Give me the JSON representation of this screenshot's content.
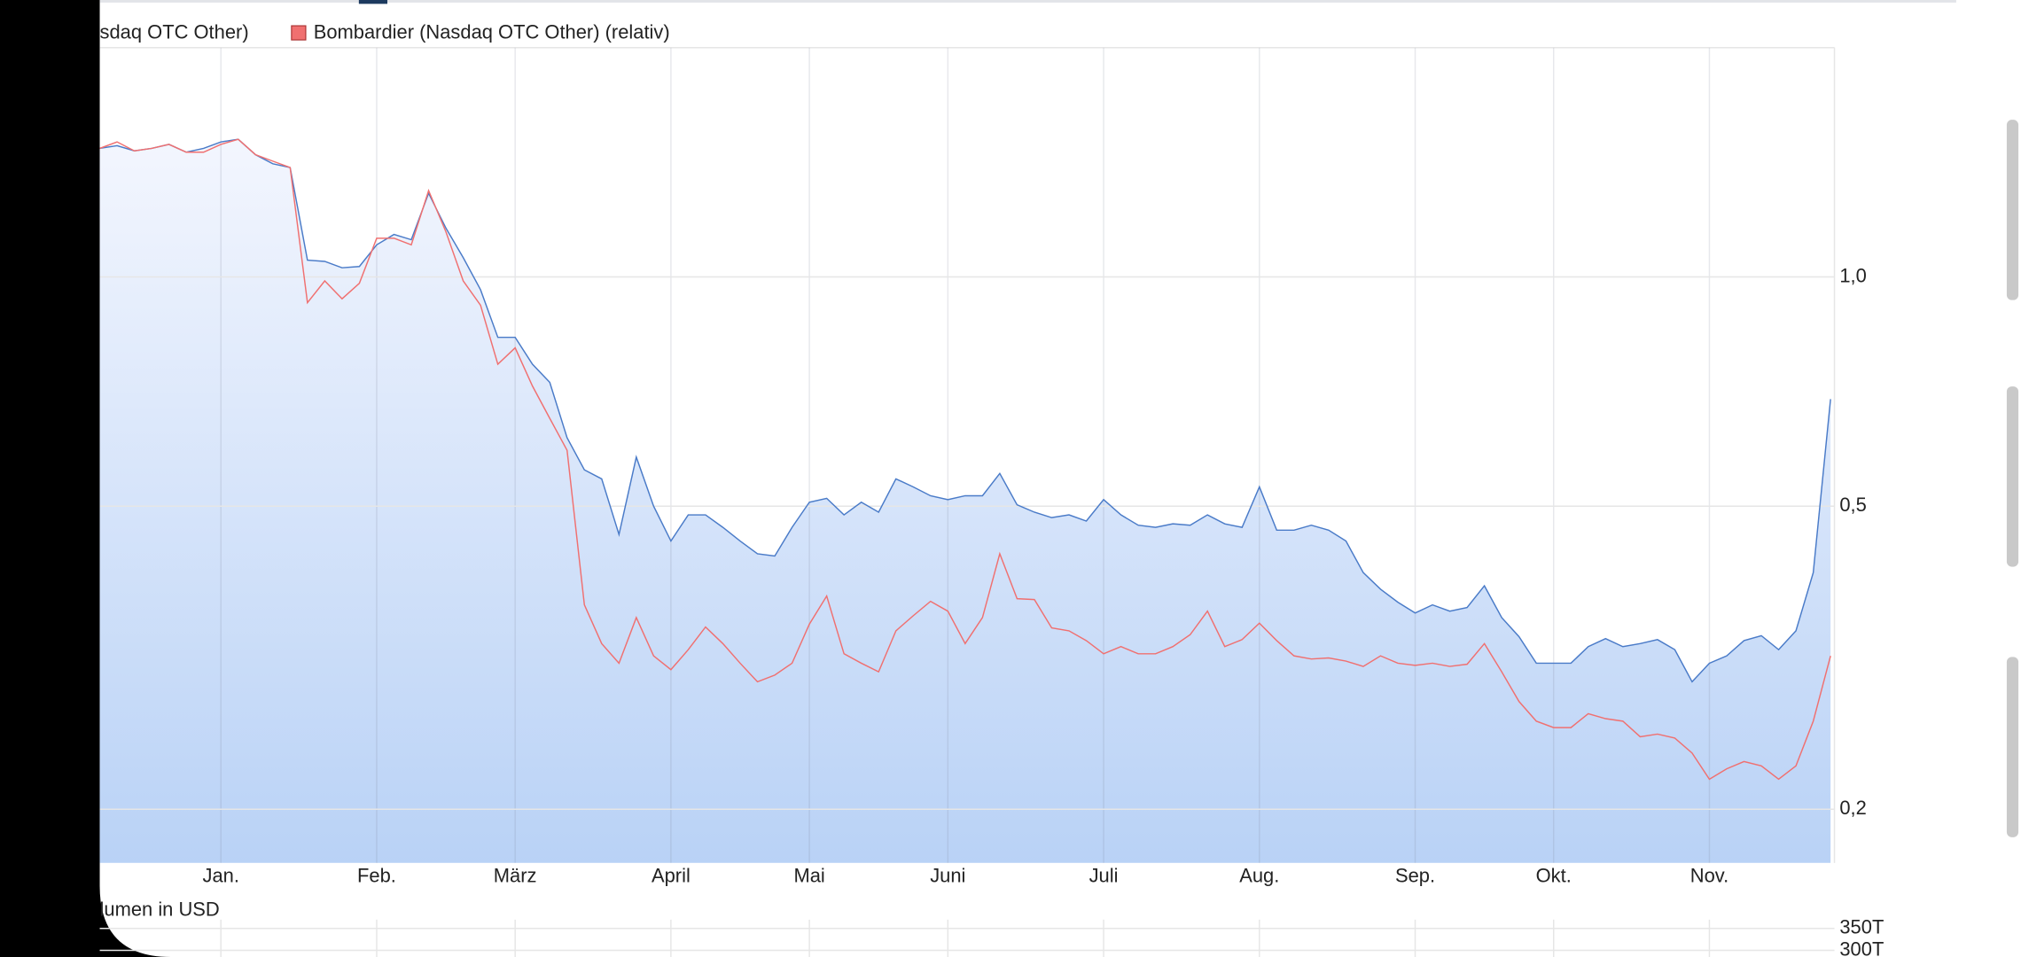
{
  "chart_data": [
    {
      "type": "line",
      "categories": [
        null,
        null,
        null,
        null,
        null,
        null,
        null,
        "Jan.",
        null,
        null,
        null,
        null,
        null,
        null,
        null,
        null,
        "Feb.",
        null,
        null,
        null,
        null,
        null,
        null,
        null,
        "März",
        null,
        null,
        null,
        null,
        null,
        null,
        null,
        null,
        "April",
        null,
        null,
        null,
        null,
        null,
        null,
        null,
        "Mai",
        null,
        null,
        null,
        null,
        null,
        null,
        null,
        "Juni",
        null,
        null,
        null,
        null,
        null,
        null,
        null,
        null,
        "Juli",
        null,
        null,
        null,
        null,
        null,
        null,
        null,
        null,
        "Aug.",
        null,
        null,
        null,
        null,
        null,
        null,
        null,
        null,
        "Sep.",
        null,
        null,
        null,
        null,
        null,
        null,
        null,
        "Okt.",
        null,
        null,
        null,
        null,
        null,
        null,
        null,
        null,
        "Nov.",
        null,
        null,
        null,
        null,
        null,
        null,
        null
      ],
      "series": [
        {
          "name": "sdaq OTC Other)",
          "color": "#4a7bc8",
          "area": true,
          "values": [
            1.475,
            1.487,
            1.464,
            1.475,
            1.493,
            1.458,
            1.475,
            1.504,
            1.516,
            1.447,
            1.408,
            1.392,
            1.052,
            1.048,
            1.028,
            1.032,
            1.102,
            1.137,
            1.119,
            1.288,
            1.159,
            1.06,
            0.962,
            0.833,
            0.833,
            0.768,
            0.727,
            0.615,
            0.558,
            0.543,
            0.459,
            0.58,
            0.5,
            0.45,
            0.487,
            0.487,
            0.469,
            0.45,
            0.433,
            0.43,
            0.469,
            0.506,
            0.512,
            0.487,
            0.506,
            0.491,
            0.543,
            0.53,
            0.516,
            0.51,
            0.516,
            0.516,
            0.552,
            0.502,
            0.491,
            0.483,
            0.487,
            0.478,
            0.51,
            0.487,
            0.472,
            0.469,
            0.474,
            0.472,
            0.487,
            0.474,
            0.469,
            0.53,
            0.465,
            0.465,
            0.472,
            0.465,
            0.45,
            0.409,
            0.389,
            0.374,
            0.362,
            0.371,
            0.364,
            0.368,
            0.393,
            0.357,
            0.337,
            0.311,
            0.311,
            0.311,
            0.327,
            0.335,
            0.327,
            0.33,
            0.334,
            0.324,
            0.294,
            0.311,
            0.318,
            0.333,
            0.338,
            0.324,
            0.343,
            0.409,
            0.691
          ]
        },
        {
          "name": "Bombardier (Nasdaq OTC Other) (relativ)",
          "color": "#f07070",
          "values": [
            1.475,
            1.504,
            1.464,
            1.475,
            1.493,
            1.458,
            1.458,
            1.493,
            1.516,
            1.447,
            1.419,
            1.392,
            0.925,
            0.988,
            0.936,
            0.981,
            1.124,
            1.124,
            1.102,
            1.298,
            1.146,
            0.988,
            0.918,
            0.768,
            0.807,
            0.719,
            0.652,
            0.592,
            0.371,
            0.33,
            0.311,
            0.357,
            0.318,
            0.305,
            0.324,
            0.347,
            0.33,
            0.311,
            0.294,
            0.3,
            0.311,
            0.35,
            0.381,
            0.32,
            0.311,
            0.303,
            0.343,
            0.359,
            0.375,
            0.364,
            0.33,
            0.357,
            0.433,
            0.378,
            0.377,
            0.346,
            0.343,
            0.333,
            0.32,
            0.327,
            0.32,
            0.32,
            0.327,
            0.339,
            0.364,
            0.327,
            0.334,
            0.351,
            0.333,
            0.318,
            0.315,
            0.316,
            0.313,
            0.308,
            0.318,
            0.311,
            0.309,
            0.311,
            0.308,
            0.31,
            0.33,
            0.303,
            0.277,
            0.261,
            0.256,
            0.256,
            0.267,
            0.263,
            0.261,
            0.249,
            0.251,
            0.248,
            0.237,
            0.219,
            0.226,
            0.231,
            0.228,
            0.219,
            0.228,
            0.261,
            0.318
          ]
        }
      ],
      "ylim": [
        0.17,
        2.0
      ],
      "log_scale": true,
      "yticks": [
        {
          "value": 1,
          "label": "1,0"
        },
        {
          "value": 0.5,
          "label": "0,5"
        },
        {
          "value": 0.2,
          "label": "0,2"
        }
      ],
      "grid": true,
      "legend": "top-left"
    },
    {
      "type": "bar",
      "title": "lumen in USD",
      "ylim": [
        0,
        370000
      ],
      "yticks": [
        {
          "value": 350000,
          "label": "350T"
        },
        {
          "value": 300000,
          "label": "300T"
        }
      ],
      "grid": true
    }
  ]
}
